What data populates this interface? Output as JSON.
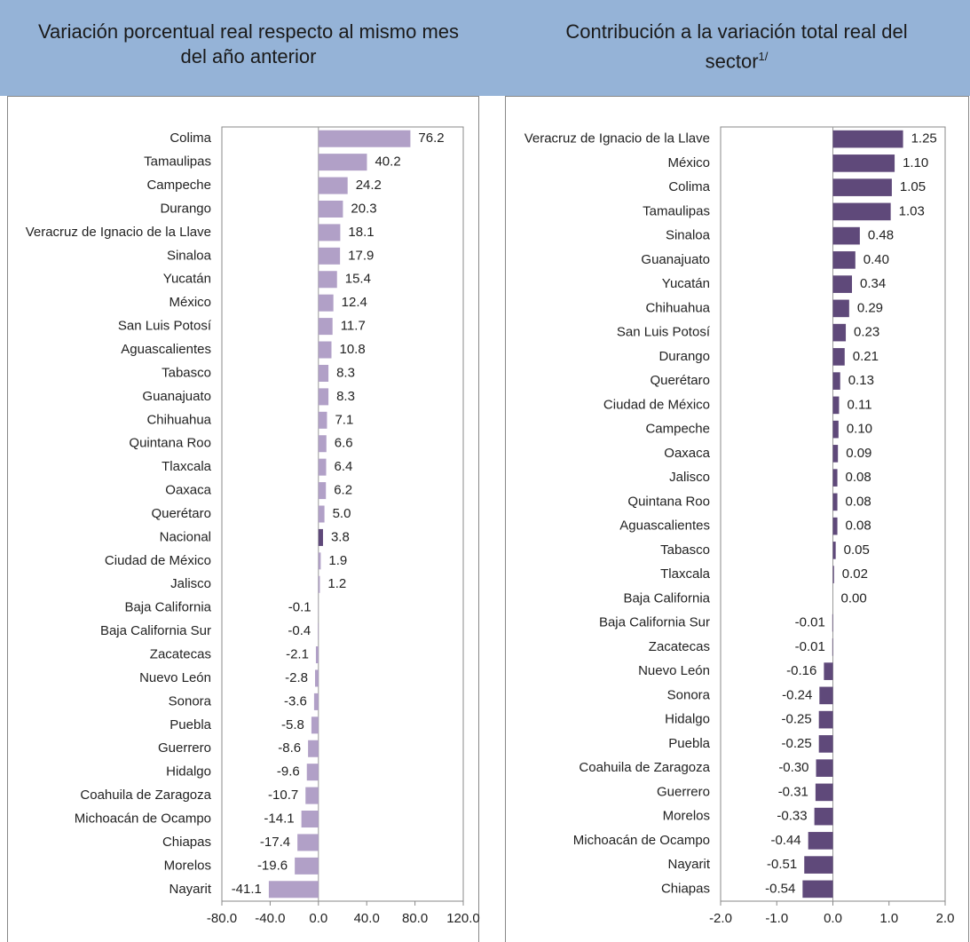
{
  "chart_data": [
    {
      "type": "bar",
      "orientation": "horizontal",
      "title": "Variación porcentual real respecto al mismo mes del año anterior",
      "categories": [
        "Colima",
        "Tamaulipas",
        "Campeche",
        "Durango",
        "Veracruz de Ignacio de la Llave",
        "Sinaloa",
        "Yucatán",
        "México",
        "San Luis Potosí",
        "Aguascalientes",
        "Tabasco",
        "Guanajuato",
        "Chihuahua",
        "Quintana Roo",
        "Tlaxcala",
        "Oaxaca",
        "Querétaro",
        "Nacional",
        "Ciudad de México",
        "Jalisco",
        "Baja California",
        "Baja California Sur",
        "Zacatecas",
        "Nuevo León",
        "Sonora",
        "Puebla",
        "Guerrero",
        "Hidalgo",
        "Coahuila de Zaragoza",
        "Michoacán de Ocampo",
        "Chiapas",
        "Morelos",
        "Nayarit"
      ],
      "values": [
        76.2,
        40.2,
        24.2,
        20.3,
        18.1,
        17.9,
        15.4,
        12.4,
        11.7,
        10.8,
        8.3,
        8.3,
        7.1,
        6.6,
        6.4,
        6.2,
        5.0,
        3.8,
        1.9,
        1.2,
        -0.1,
        -0.4,
        -2.1,
        -2.8,
        -3.6,
        -5.8,
        -8.6,
        -9.6,
        -10.7,
        -14.1,
        -17.4,
        -19.6,
        -41.1
      ],
      "value_labels": [
        "76.2",
        "40.2",
        "24.2",
        "20.3",
        "18.1",
        "17.9",
        "15.4",
        "12.4",
        "11.7",
        "10.8",
        "8.3",
        "8.3",
        "7.1",
        "6.6",
        "6.4",
        "6.2",
        "5.0",
        "3.8",
        "1.9",
        "1.2",
        "-0.1",
        "-0.4",
        "-2.1",
        "-2.8",
        "-3.6",
        "-5.8",
        "-8.6",
        "-9.6",
        "-10.7",
        "-14.1",
        "-17.4",
        "-19.6",
        "-41.1"
      ],
      "colors": [
        "#b1a0c7",
        "#b1a0c7",
        "#b1a0c7",
        "#b1a0c7",
        "#b1a0c7",
        "#b1a0c7",
        "#b1a0c7",
        "#b1a0c7",
        "#b1a0c7",
        "#b1a0c7",
        "#b1a0c7",
        "#b1a0c7",
        "#b1a0c7",
        "#b1a0c7",
        "#b1a0c7",
        "#b1a0c7",
        "#b1a0c7",
        "#5f497a",
        "#b1a0c7",
        "#b1a0c7",
        "#b1a0c7",
        "#b1a0c7",
        "#b1a0c7",
        "#b1a0c7",
        "#b1a0c7",
        "#b1a0c7",
        "#b1a0c7",
        "#b1a0c7",
        "#b1a0c7",
        "#b1a0c7",
        "#b1a0c7",
        "#b1a0c7",
        "#b1a0c7"
      ],
      "xlim": [
        -80,
        120
      ],
      "xticks": [
        {
          "value": -80,
          "label": "-80.0"
        },
        {
          "value": -40,
          "label": "-40.0"
        },
        {
          "value": 0,
          "label": "0.0"
        },
        {
          "value": 40,
          "label": "40.0"
        },
        {
          "value": 80,
          "label": "80.0"
        },
        {
          "value": 120,
          "label": "120.0"
        }
      ]
    },
    {
      "type": "bar",
      "orientation": "horizontal",
      "title": "Contribución a la variación total real del sector",
      "title_note": "1/",
      "categories": [
        "Veracruz de Ignacio de la Llave",
        "México",
        "Colima",
        "Tamaulipas",
        "Sinaloa",
        "Guanajuato",
        "Yucatán",
        "Chihuahua",
        "San Luis Potosí",
        "Durango",
        "Querétaro",
        "Ciudad de México",
        "Campeche",
        "Oaxaca",
        "Jalisco",
        "Quintana Roo",
        "Aguascalientes",
        "Tabasco",
        "Tlaxcala",
        "Baja California",
        "Baja California Sur",
        "Zacatecas",
        "Nuevo León",
        "Sonora",
        "Hidalgo",
        "Puebla",
        "Coahuila de Zaragoza",
        "Guerrero",
        "Morelos",
        "Michoacán de Ocampo",
        "Nayarit",
        "Chiapas"
      ],
      "values": [
        1.25,
        1.1,
        1.05,
        1.03,
        0.48,
        0.4,
        0.34,
        0.29,
        0.23,
        0.21,
        0.13,
        0.11,
        0.1,
        0.09,
        0.08,
        0.08,
        0.08,
        0.05,
        0.02,
        0.0,
        -0.01,
        -0.01,
        -0.16,
        -0.24,
        -0.25,
        -0.25,
        -0.3,
        -0.31,
        -0.33,
        -0.44,
        -0.51,
        -0.54
      ],
      "value_labels": [
        "1.25",
        "1.10",
        "1.05",
        "1.03",
        "0.48",
        "0.40",
        "0.34",
        "0.29",
        "0.23",
        "0.21",
        "0.13",
        "0.11",
        "0.10",
        "0.09",
        "0.08",
        "0.08",
        "0.08",
        "0.05",
        "0.02",
        "0.00",
        "-0.01",
        "-0.01",
        "-0.16",
        "-0.24",
        "-0.25",
        "-0.25",
        "-0.30",
        "-0.31",
        "-0.33",
        "-0.44",
        "-0.51",
        "-0.54"
      ],
      "color": "#5f497a",
      "xlim": [
        -2,
        2
      ],
      "xticks": [
        {
          "value": -2,
          "label": "-2.0"
        },
        {
          "value": -1,
          "label": "-1.0"
        },
        {
          "value": 0,
          "label": "0.0"
        },
        {
          "value": 1,
          "label": "1.0"
        },
        {
          "value": 2,
          "label": "2.0"
        }
      ]
    }
  ]
}
